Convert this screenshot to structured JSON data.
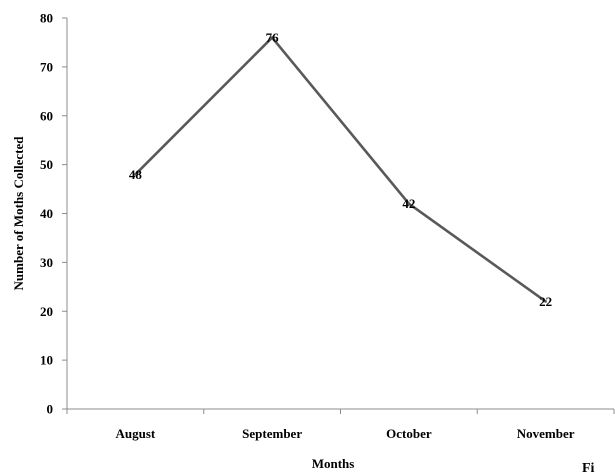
{
  "chart_data": {
    "type": "line",
    "categories": [
      "August",
      "September",
      "October",
      "November"
    ],
    "series": [
      {
        "values": [
          48,
          76,
          42,
          22
        ],
        "color": "#595959"
      }
    ],
    "data_labels": [
      "48",
      "76",
      "42",
      "22"
    ],
    "yticks": [
      "0",
      "10",
      "20",
      "30",
      "40",
      "50",
      "60",
      "70",
      "80"
    ],
    "ylim": [
      0,
      80
    ],
    "xlabel": "Months",
    "ylabel": "Number of Moths Collected",
    "title": "",
    "grid": false,
    "legend": "none"
  },
  "corner_text": "Fi"
}
